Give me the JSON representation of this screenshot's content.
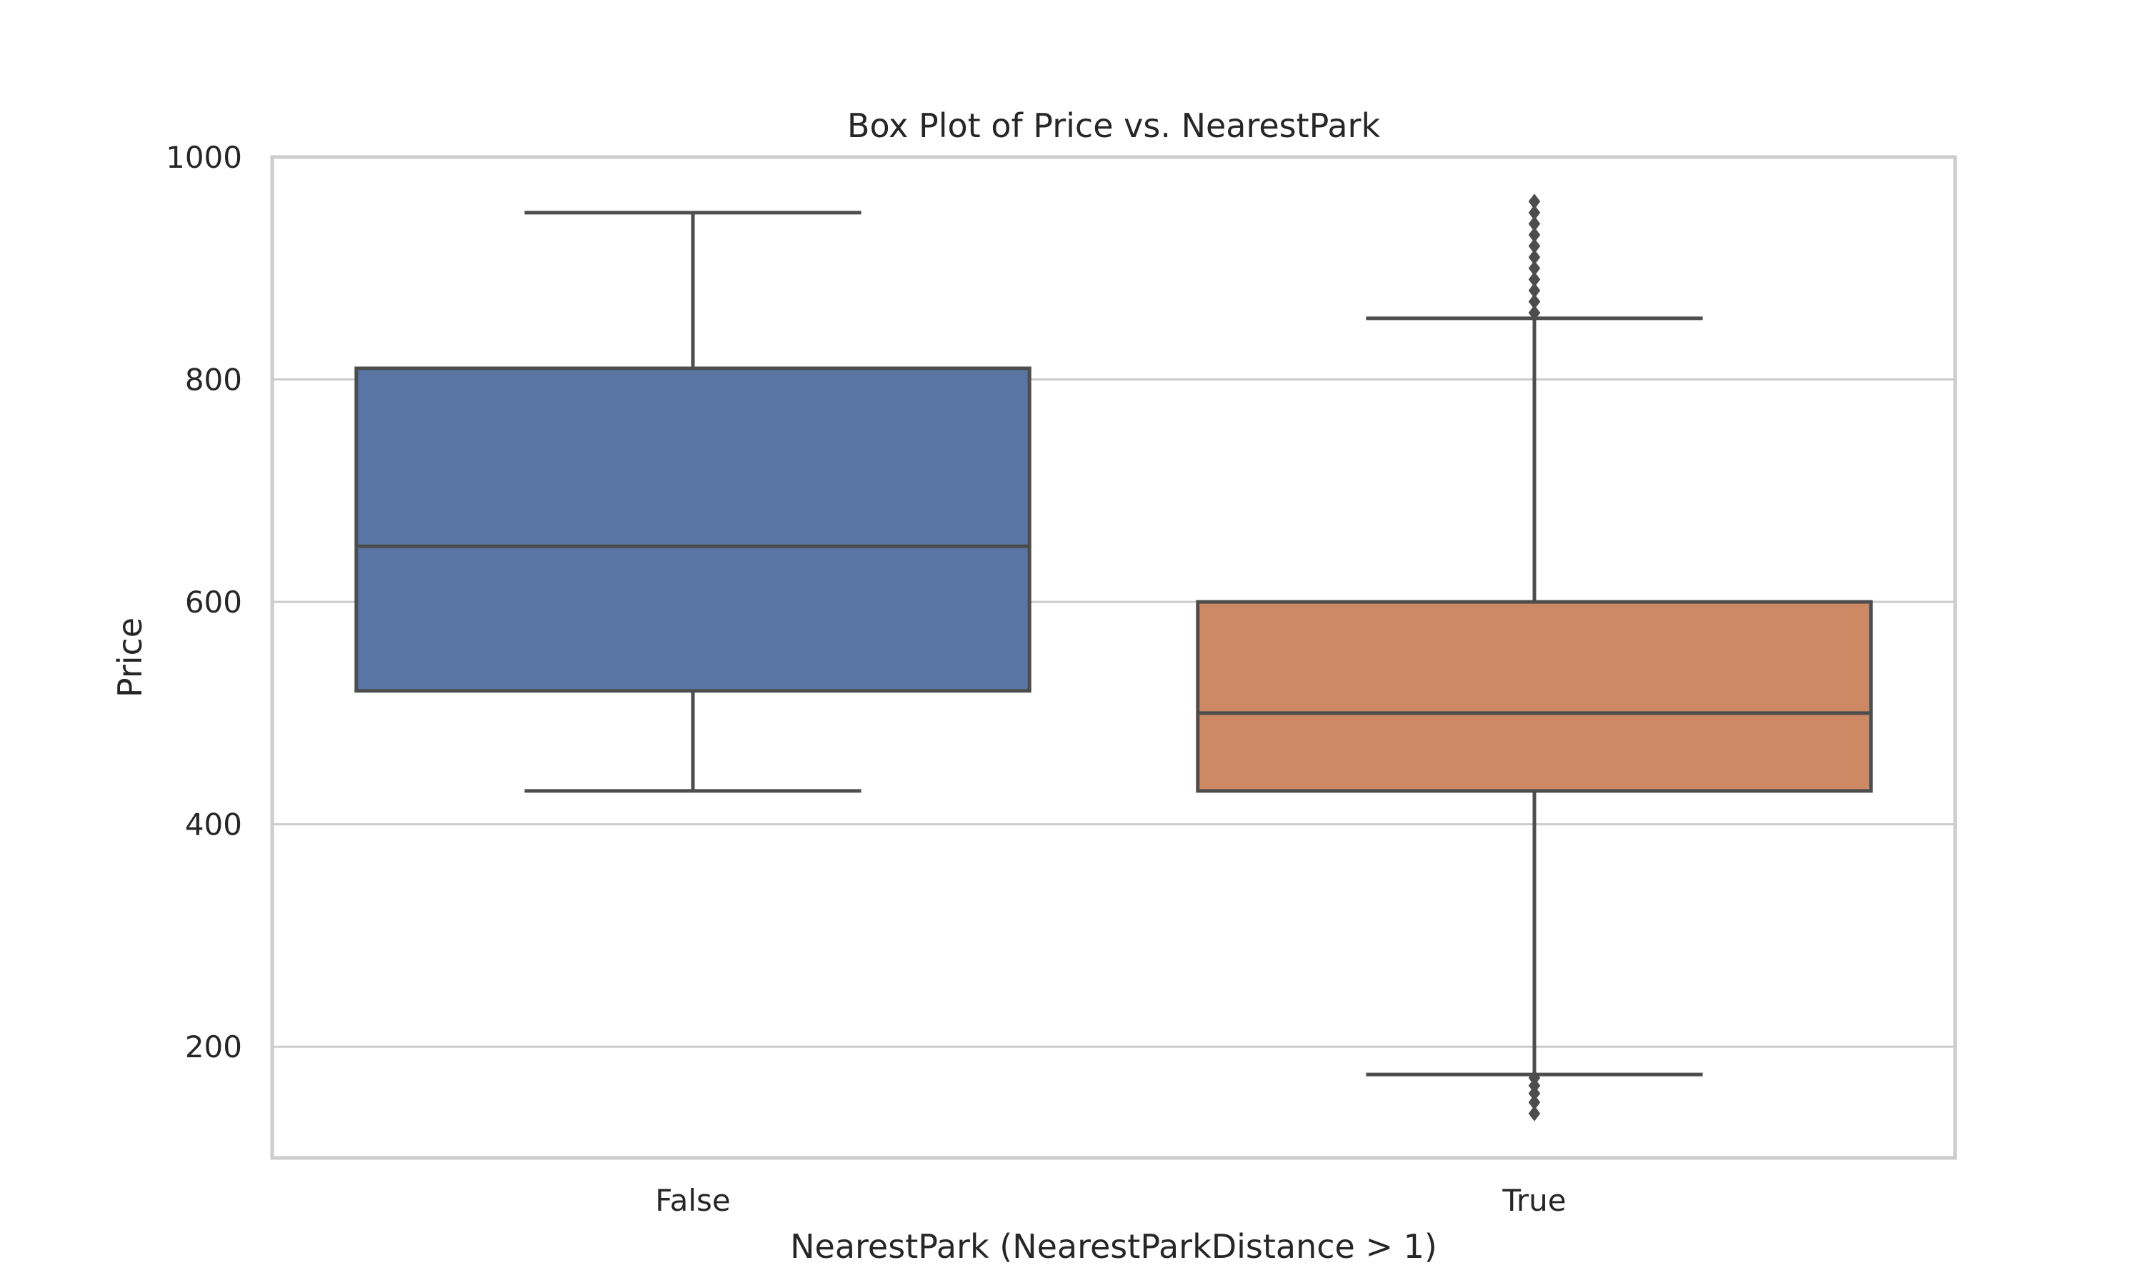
{
  "chart_data": {
    "type": "box",
    "title": "Box Plot of Price vs. NearestPark",
    "xlabel": "NearestPark (NearestParkDistance > 1)",
    "ylabel": "Price",
    "ylim": [
      100,
      1000
    ],
    "yticks": [
      200,
      400,
      600,
      800,
      1000
    ],
    "grid": "horizontal",
    "categories": [
      "False",
      "True"
    ],
    "boxes": [
      {
        "category": "False",
        "color": "#5875a4",
        "whisker_low": 430,
        "q1": 520,
        "median": 650,
        "q3": 810,
        "whisker_high": 950,
        "outliers": []
      },
      {
        "category": "True",
        "color": "#cc8963",
        "whisker_low": 175,
        "q1": 430,
        "median": 500,
        "q3": 600,
        "whisker_high": 855,
        "outliers": [
          140,
          150,
          158,
          165,
          172,
          860,
          870,
          880,
          890,
          900,
          910,
          920,
          930,
          940,
          950,
          960
        ]
      }
    ]
  }
}
